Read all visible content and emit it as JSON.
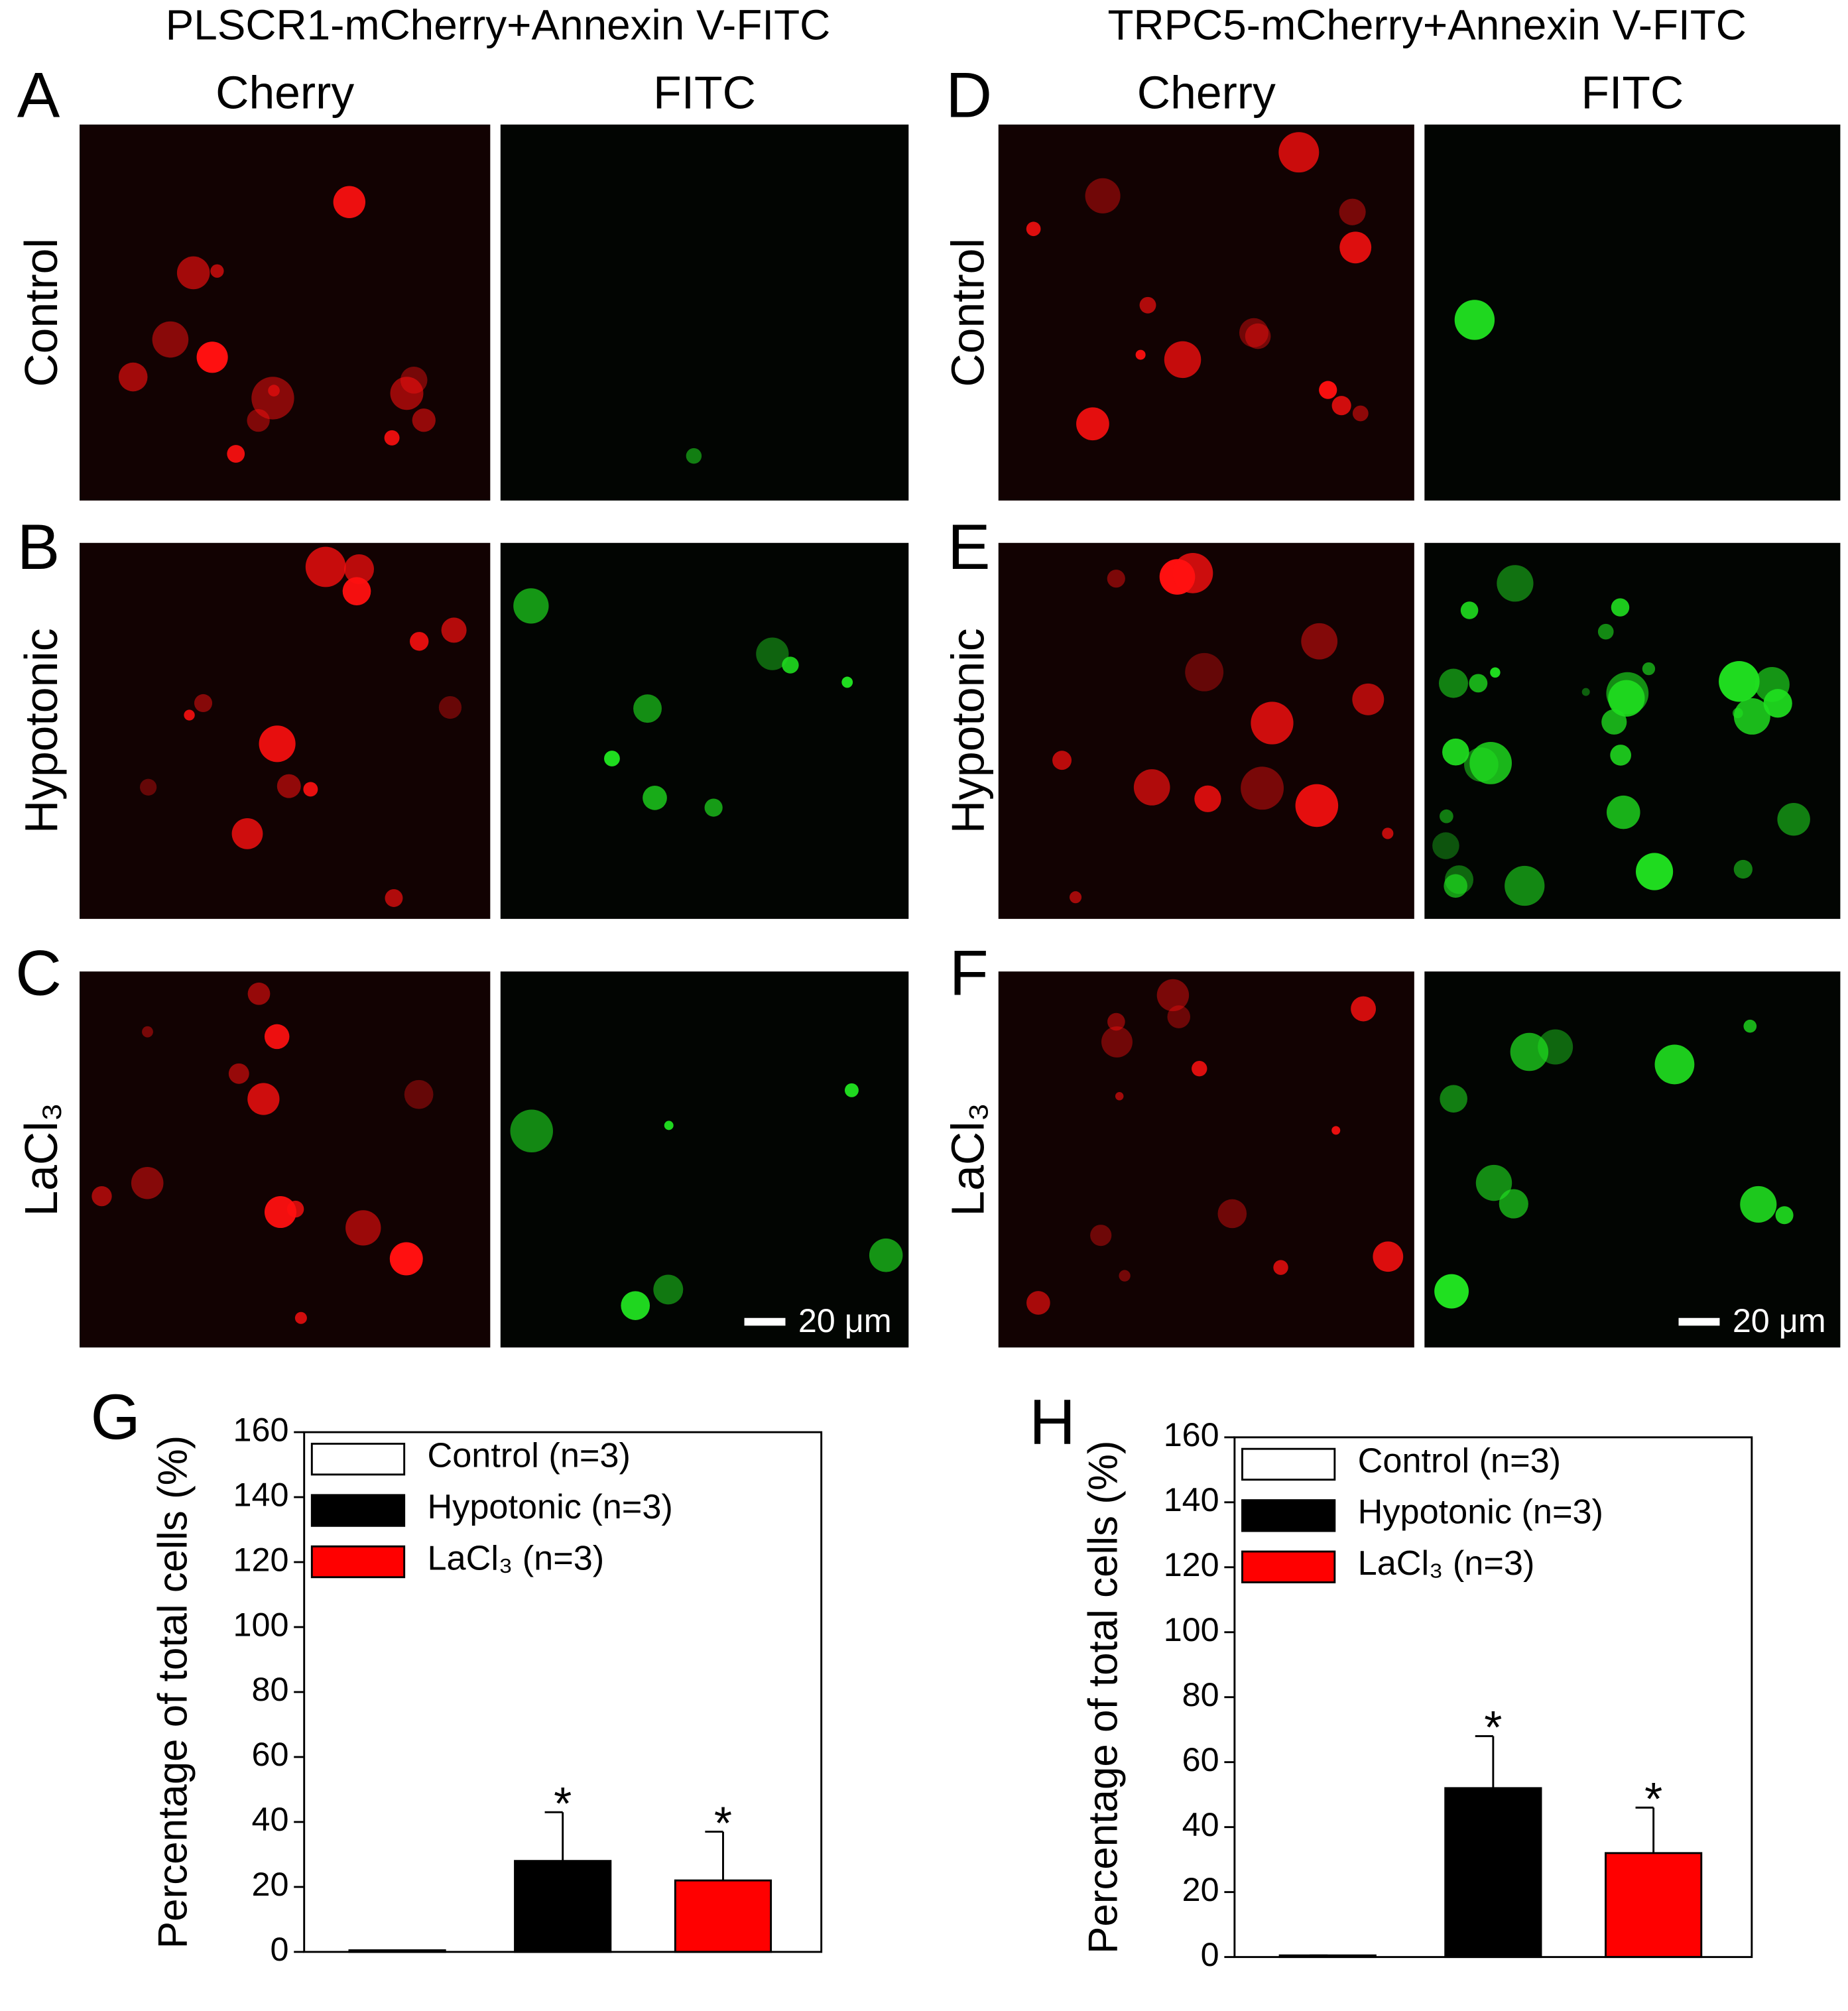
{
  "figure": {
    "titles": [
      "PLSCR1-mCherry+Annexin V-FITC",
      "TRPC5-mCherry+Annexin V-FITC"
    ],
    "columns": [
      "Cherry",
      "FITC"
    ],
    "rows": [
      "Control",
      "Hypotonic",
      "LaCl₃"
    ],
    "panels": [
      "A",
      "B",
      "C",
      "D",
      "E",
      "F"
    ],
    "scale_bar": "20 μm"
  },
  "chart_data": [
    {
      "type": "bar",
      "panel": "G",
      "ylabel": "Percentage of total cells (%)",
      "ylim": [
        0,
        160
      ],
      "yticks": [
        0,
        20,
        40,
        60,
        80,
        100,
        120,
        140,
        160
      ],
      "legend": "upper left",
      "series": [
        {
          "name": "Control (n=3)",
          "color": "#ffffff",
          "values": [
            0.5
          ],
          "errors": [
            0
          ]
        },
        {
          "name": "Hypotonic (n=3)",
          "color": "#000000",
          "values": [
            28
          ],
          "errors": [
            15
          ],
          "annotation": "*"
        },
        {
          "name": "LaCl₃ (n=3)",
          "color": "#ff0000",
          "values": [
            22
          ],
          "errors": [
            15
          ],
          "annotation": "*"
        }
      ]
    },
    {
      "type": "bar",
      "panel": "H",
      "ylabel": "Percentage of total cells (%)",
      "ylim": [
        0,
        160
      ],
      "yticks": [
        0,
        20,
        40,
        60,
        80,
        100,
        120,
        140,
        160
      ],
      "legend": "upper left",
      "series": [
        {
          "name": "Control (n=3)",
          "color": "#ffffff",
          "values": [
            0.5
          ],
          "errors": [
            0
          ]
        },
        {
          "name": "Hypotonic (n=3)",
          "color": "#000000",
          "values": [
            52
          ],
          "errors": [
            16
          ],
          "annotation": "*"
        },
        {
          "name": "LaCl₃ (n=3)",
          "color": "#ff0000",
          "values": [
            32
          ],
          "errors": [
            14
          ],
          "annotation": "*"
        }
      ]
    }
  ]
}
